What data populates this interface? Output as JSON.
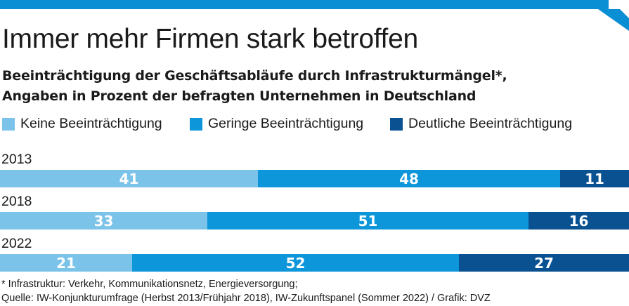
{
  "colors": {
    "topbar": "#0b8fd4",
    "keine": "#7cc3ea",
    "geringe": "#0d96da",
    "deutliche": "#0a5192",
    "text": "#1a1a1a"
  },
  "header": {
    "title": "Immer mehr Firmen stark betroffen",
    "subtitle_line1": "Beeinträchtigung der Geschäftsabläufe durch Infrastrukturmängel*,",
    "subtitle_line2": "Angaben in Prozent der befragten Unternehmen in Deutschland"
  },
  "legend": {
    "items": [
      {
        "label": "Keine Beeinträchtigung",
        "color": "#7cc3ea"
      },
      {
        "label": "Geringe Beeinträchtigung",
        "color": "#0d96da"
      },
      {
        "label": "Deutliche Beeinträchtigung",
        "color": "#0a5192"
      }
    ]
  },
  "chart_data": {
    "type": "bar",
    "orientation": "horizontal-stacked-100",
    "categories": [
      "2013",
      "2018",
      "2022"
    ],
    "series": [
      {
        "name": "Keine Beeinträchtigung",
        "values": [
          41,
          33,
          21
        ]
      },
      {
        "name": "Geringe Beeinträchtigung",
        "values": [
          48,
          51,
          52
        ]
      },
      {
        "name": "Deutliche Beeinträchtigung",
        "values": [
          11,
          16,
          27
        ]
      }
    ],
    "xlim": [
      0,
      100
    ],
    "grid": false,
    "legend_position": "top-left"
  },
  "footer": {
    "note": "* Infrastruktur: Verkehr, Kommunikationsnetz, Energieversorgung;",
    "source": "Quelle: IW-Konjunkturumfrage (Herbst 2013/Frühjahr 2018), IW-Zukunftspanel (Sommer 2022) / Grafik: DVZ"
  }
}
